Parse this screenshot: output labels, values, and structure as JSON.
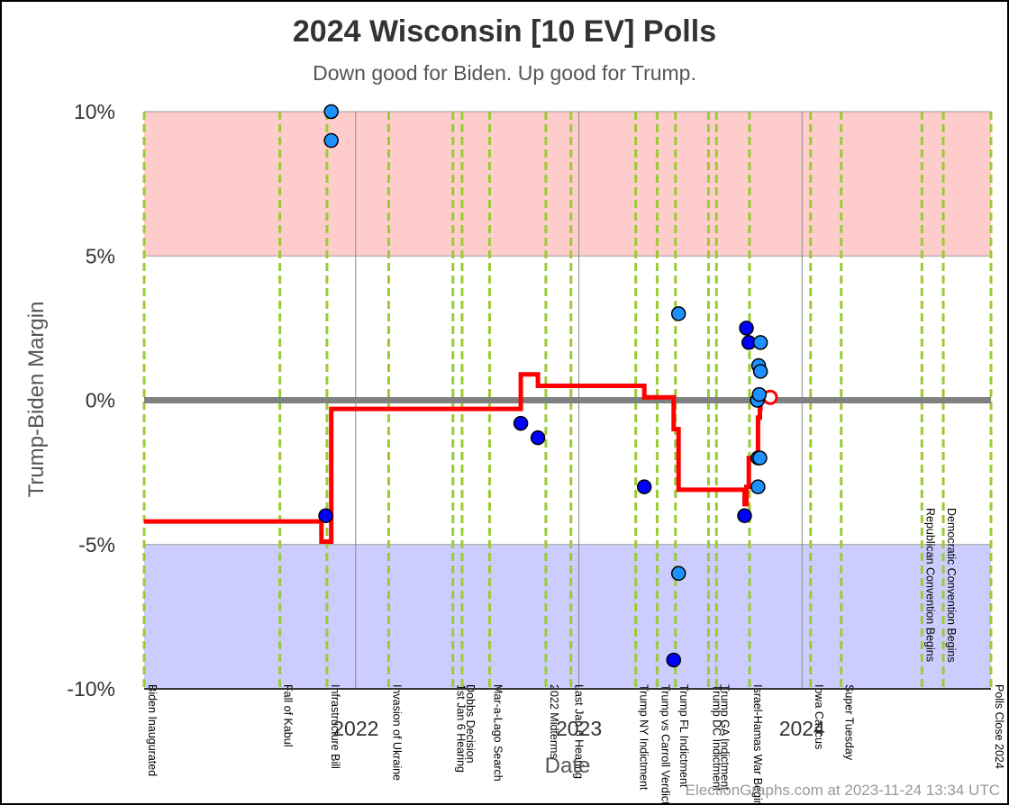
{
  "header": {
    "title": "2024 Wisconsin [10 EV] Polls",
    "subtitle": "Down good for Biden. Up good for Trump."
  },
  "footer": {
    "credit": "ElectionGraphs.com at 2023-11-24 13:34 UTC"
  },
  "colors": {
    "trump_band": "#ffcccc",
    "biden_band": "#ccccff",
    "event_line": "#99cc33",
    "average_line": "#ff0000",
    "poll_dark": "#0000ff",
    "poll_light": "#1e90ff",
    "zero_line": "#808080"
  },
  "chart_data": {
    "type": "scatter",
    "title": "2024 Wisconsin [10 EV] Polls",
    "subtitle": "Down good for Biden. Up good for Trump.",
    "xlabel": "Date",
    "ylabel": "Trump-Biden Margin",
    "xlim": [
      "2021-01-20",
      "2024-11-05"
    ],
    "ylim": [
      -10,
      10
    ],
    "y_ticks": [
      {
        "value": -10,
        "label": "-10%"
      },
      {
        "value": -5,
        "label": "-5%"
      },
      {
        "value": 0,
        "label": "0%"
      },
      {
        "value": 5,
        "label": "5%"
      },
      {
        "value": 10,
        "label": "10%"
      }
    ],
    "x_ticks": [
      {
        "date": "2022-01-01",
        "label": "2022"
      },
      {
        "date": "2023-01-01",
        "label": "2023"
      },
      {
        "date": "2024-01-01",
        "label": "2024"
      }
    ],
    "bands": [
      {
        "from": 5,
        "to": 10,
        "color": "#ffcccc"
      },
      {
        "from": -10,
        "to": -5,
        "color": "#ccccff"
      }
    ],
    "events": [
      {
        "date": "2021-01-20",
        "label": "Biden Inaugurated",
        "anchor": "bottom"
      },
      {
        "date": "2021-08-30",
        "label": "Fall of Kabul",
        "anchor": "bottom"
      },
      {
        "date": "2021-11-15",
        "label": "Infrastructure Bill",
        "anchor": "bottom"
      },
      {
        "date": "2022-02-24",
        "label": "Invasion of Ukraine",
        "anchor": "bottom"
      },
      {
        "date": "2022-06-09",
        "label": "1st Jan 6 Hearing",
        "anchor": "bottom"
      },
      {
        "date": "2022-06-24",
        "label": "Dobbs Decision",
        "anchor": "bottom"
      },
      {
        "date": "2022-08-08",
        "label": "Mar-a-Lago Search",
        "anchor": "bottom"
      },
      {
        "date": "2022-11-08",
        "label": "2022 Midterms",
        "anchor": "bottom"
      },
      {
        "date": "2022-12-19",
        "label": "Last Jan 6 Hearing",
        "anchor": "bottom"
      },
      {
        "date": "2023-04-04",
        "label": "Trump NY Indictment",
        "anchor": "bottom"
      },
      {
        "date": "2023-05-09",
        "label": "Trump vs Carroll Verdict",
        "anchor": "bottom"
      },
      {
        "date": "2023-06-08",
        "label": "Trump FL Indictment",
        "anchor": "bottom"
      },
      {
        "date": "2023-08-01",
        "label": "Trump DC Indictment",
        "anchor": "bottom"
      },
      {
        "date": "2023-08-14",
        "label": "Trump GA Indictment",
        "anchor": "bottom"
      },
      {
        "date": "2023-10-07",
        "label": "Israel-Hamas War Begins",
        "anchor": "bottom"
      },
      {
        "date": "2024-01-15",
        "label": "Iowa Caucus",
        "anchor": "bottom"
      },
      {
        "date": "2024-03-05",
        "label": "Super Tuesday",
        "anchor": "bottom"
      },
      {
        "date": "2024-07-15",
        "label": "Republican Convention Begins",
        "anchor": "top"
      },
      {
        "date": "2024-08-19",
        "label": "Democratic Convention Begins",
        "anchor": "top"
      },
      {
        "date": "2024-11-05",
        "label": "Polls Close 2024",
        "anchor": "bottom"
      }
    ],
    "series": [
      {
        "name": "Polls",
        "points": [
          {
            "x": "2021-11-13",
            "y": -4,
            "shade": "dark"
          },
          {
            "x": "2021-11-22",
            "y": 10,
            "shade": "light"
          },
          {
            "x": "2021-11-22",
            "y": 9,
            "shade": "light"
          },
          {
            "x": "2022-09-28",
            "y": -0.8,
            "shade": "dark"
          },
          {
            "x": "2022-10-26",
            "y": -1.3,
            "shade": "dark"
          },
          {
            "x": "2023-04-18",
            "y": -3,
            "shade": "dark"
          },
          {
            "x": "2023-06-05",
            "y": -9,
            "shade": "dark"
          },
          {
            "x": "2023-06-13",
            "y": 3,
            "shade": "light"
          },
          {
            "x": "2023-06-13",
            "y": -6,
            "shade": "light"
          },
          {
            "x": "2023-09-29",
            "y": -4,
            "shade": "dark"
          },
          {
            "x": "2023-10-02",
            "y": 2.5,
            "shade": "dark"
          },
          {
            "x": "2023-10-06",
            "y": 2,
            "shade": "dark"
          },
          {
            "x": "2023-10-20",
            "y": 0,
            "shade": "light"
          },
          {
            "x": "2023-10-21",
            "y": -2,
            "shade": "light"
          },
          {
            "x": "2023-10-21",
            "y": -3,
            "shade": "light"
          },
          {
            "x": "2023-10-22",
            "y": 1.2,
            "shade": "light"
          },
          {
            "x": "2023-10-23",
            "y": 0.2,
            "shade": "light"
          },
          {
            "x": "2023-10-24",
            "y": -2,
            "shade": "light"
          },
          {
            "x": "2023-10-25",
            "y": 1,
            "shade": "light"
          },
          {
            "x": "2023-10-25",
            "y": 2,
            "shade": "light"
          }
        ]
      },
      {
        "name": "Average",
        "step": [
          {
            "x": "2021-01-20",
            "y": -4.2
          },
          {
            "x": "2021-11-06",
            "y": -4.2
          },
          {
            "x": "2021-11-06",
            "y": -4.9
          },
          {
            "x": "2021-11-22",
            "y": -4.9
          },
          {
            "x": "2021-11-22",
            "y": -0.3
          },
          {
            "x": "2022-09-28",
            "y": -0.3
          },
          {
            "x": "2022-09-28",
            "y": 0.9
          },
          {
            "x": "2022-10-26",
            "y": 0.9
          },
          {
            "x": "2022-10-26",
            "y": 0.5
          },
          {
            "x": "2023-04-18",
            "y": 0.5
          },
          {
            "x": "2023-04-18",
            "y": 0.1
          },
          {
            "x": "2023-06-05",
            "y": 0.1
          },
          {
            "x": "2023-06-05",
            "y": -1
          },
          {
            "x": "2023-06-13",
            "y": -1
          },
          {
            "x": "2023-06-13",
            "y": -3.1
          },
          {
            "x": "2023-09-29",
            "y": -3.1
          },
          {
            "x": "2023-09-29",
            "y": -3.6
          },
          {
            "x": "2023-10-02",
            "y": -3.6
          },
          {
            "x": "2023-10-02",
            "y": -3
          },
          {
            "x": "2023-10-06",
            "y": -3
          },
          {
            "x": "2023-10-06",
            "y": -2
          },
          {
            "x": "2023-10-21",
            "y": -2
          },
          {
            "x": "2023-10-21",
            "y": -0.6
          },
          {
            "x": "2023-10-24",
            "y": -0.6
          },
          {
            "x": "2023-10-24",
            "y": -0.3
          },
          {
            "x": "2023-10-25",
            "y": -0.3
          },
          {
            "x": "2023-10-25",
            "y": 0.1
          }
        ],
        "current": {
          "x": "2023-11-10",
          "y": 0.1
        }
      }
    ],
    "grid": true
  }
}
